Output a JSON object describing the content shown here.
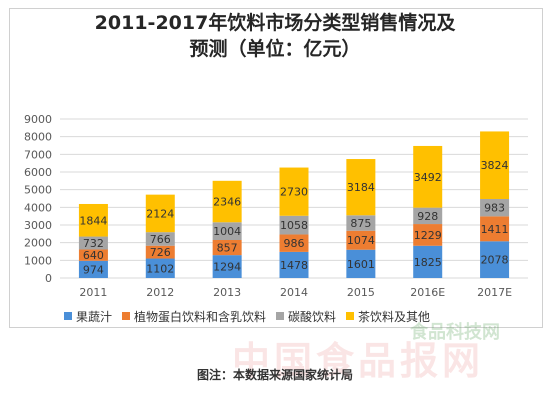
{
  "chart_data": {
    "type": "bar",
    "stacked": true,
    "title_line1": "2011-2017年饮料市场分类型销售情况及",
    "title_line2": "预测（单位：亿元）",
    "categories": [
      "2011",
      "2012",
      "2013",
      "2014",
      "2015",
      "2016E",
      "2017E"
    ],
    "series": [
      {
        "name": "果蔬汁",
        "color": "#4a8fd8",
        "values": [
          974,
          1102,
          1294,
          1478,
          1601,
          1825,
          2078
        ]
      },
      {
        "name": "植物蛋白饮料和含乳饮料",
        "color": "#ed7d31",
        "values": [
          640,
          726,
          857,
          986,
          1074,
          1229,
          1411
        ]
      },
      {
        "name": "碳酸饮料",
        "color": "#a5a5a5",
        "values": [
          732,
          766,
          1004,
          1058,
          875,
          928,
          983
        ]
      },
      {
        "name": "茶饮料及其他",
        "color": "#ffc000",
        "values": [
          1844,
          2124,
          2346,
          2730,
          3184,
          3492,
          3824
        ]
      }
    ],
    "yticks": [
      0,
      1000,
      2000,
      3000,
      4000,
      5000,
      6000,
      7000,
      8000,
      9000
    ],
    "ylim": [
      0,
      9000
    ],
    "grid": true,
    "legend_position": "bottom"
  },
  "caption": "图注：本数据来源国家统计局",
  "watermark": "中国食品报网",
  "watermark_small": "食品科技网"
}
